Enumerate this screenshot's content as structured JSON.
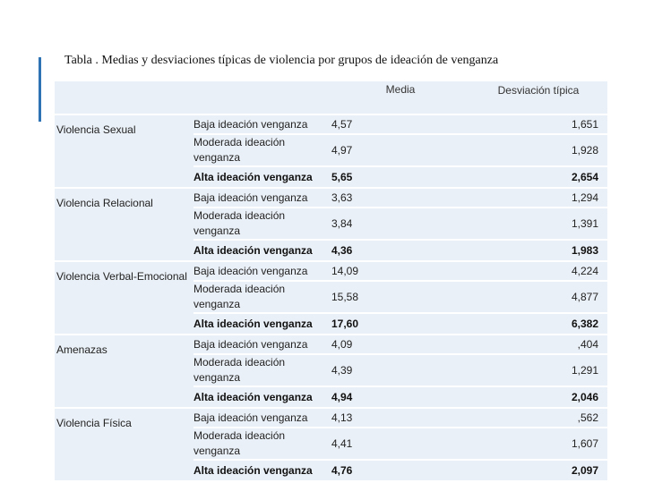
{
  "title": "Tabla . Medias y desviaciones típicas de violencia por grupos de ideación de venganza",
  "header": {
    "media": "Media",
    "desviacion": "Desviación típica"
  },
  "groups": [
    {
      "name": "Violencia Sexual",
      "rows": [
        {
          "label": "Baja ideación venganza",
          "media": "4,57",
          "desv": "1,651"
        },
        {
          "label": "Moderada ideación venganza",
          "media": "4,97",
          "desv": "1,928"
        },
        {
          "label": "Alta ideación venganza",
          "media": "5,65",
          "desv": "2,654"
        }
      ]
    },
    {
      "name": "Violencia Relacional",
      "rows": [
        {
          "label": "Baja ideación venganza",
          "media": "3,63",
          "desv": "1,294"
        },
        {
          "label": "Moderada ideación venganza",
          "media": "3,84",
          "desv": "1,391"
        },
        {
          "label": "Alta ideación venganza",
          "media": "4,36",
          "desv": "1,983"
        }
      ]
    },
    {
      "name": "Violencia Verbal-Emocional",
      "rows": [
        {
          "label": "Baja ideación venganza",
          "media": "14,09",
          "desv": "4,224"
        },
        {
          "label": "Moderada ideación venganza",
          "media": "15,58",
          "desv": "4,877"
        },
        {
          "label": "Alta ideación venganza",
          "media": "17,60",
          "desv": "6,382"
        }
      ]
    },
    {
      "name": "Amenazas",
      "rows": [
        {
          "label": "Baja ideación venganza",
          "media": "4,09",
          "desv": ",404"
        },
        {
          "label": "Moderada ideación venganza",
          "media": "4,39",
          "desv": "1,291"
        },
        {
          "label": "Alta ideación venganza",
          "media": "4,94",
          "desv": "2,046"
        }
      ]
    },
    {
      "name": "Violencia Física",
      "rows": [
        {
          "label": "Baja ideación venganza",
          "media": "4,13",
          "desv": ",562"
        },
        {
          "label": "Moderada ideación venganza",
          "media": "4,41",
          "desv": "1,607"
        },
        {
          "label": "Alta ideación venganza",
          "media": "4,76",
          "desv": "2,097"
        }
      ]
    }
  ]
}
